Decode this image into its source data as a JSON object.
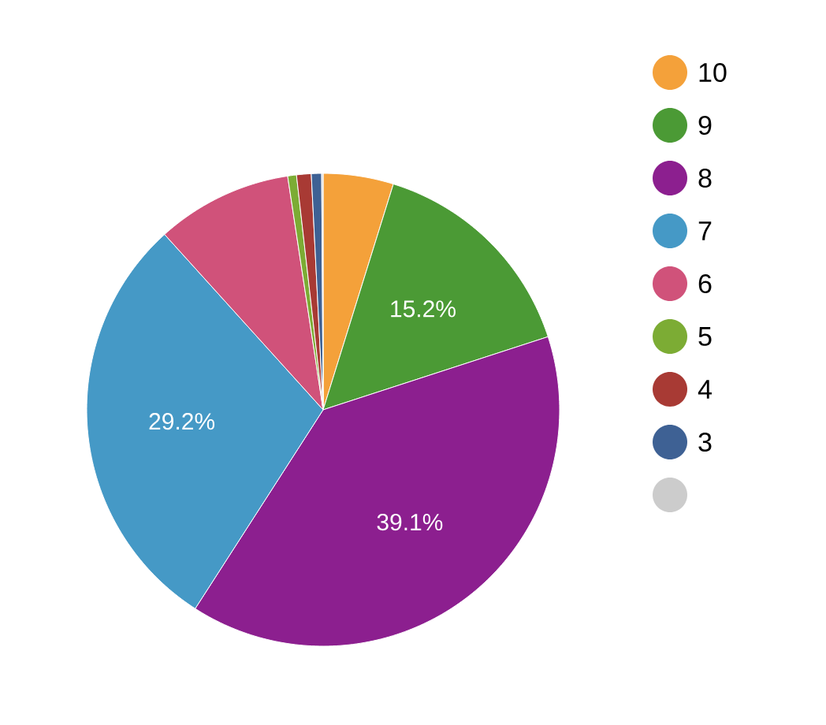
{
  "chart_data": {
    "type": "pie",
    "categories": [
      "10",
      "9",
      "8",
      "7",
      "6",
      "5",
      "4",
      "3",
      null
    ],
    "values": [
      4.8,
      15.2,
      39.1,
      29.2,
      9.3,
      0.6,
      1.0,
      0.7,
      0.1
    ],
    "colors": [
      "#f4a13a",
      "#4b9a35",
      "#8c1f8f",
      "#4599c6",
      "#d0527a",
      "#7cac34",
      "#a83a34",
      "#3e6194",
      "#cccccc"
    ],
    "value_labels": [
      null,
      "15.2%",
      "39.1%",
      "29.2%",
      null,
      null,
      null,
      null,
      null
    ],
    "legend": "right"
  }
}
